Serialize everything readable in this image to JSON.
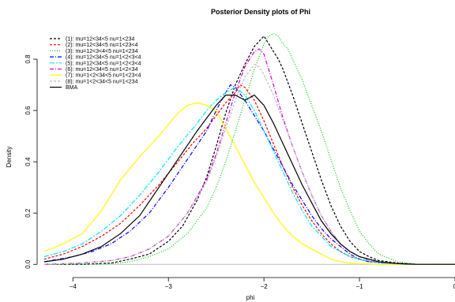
{
  "chart_data": {
    "type": "line",
    "title": "Posterior Density plots of Phi",
    "xlabel": "phi",
    "ylabel": "Density",
    "xlim": [
      -4.3,
      0.0
    ],
    "ylim": [
      -0.03,
      0.92
    ],
    "xticks": [
      -4,
      -3,
      -2,
      -1,
      0
    ],
    "xtick_labels": [
      "−4",
      "−3",
      "−2",
      "−1",
      "0"
    ],
    "yticks": [
      0.0,
      0.2,
      0.4,
      0.6,
      0.8
    ],
    "ytick_labels": [
      "0.0",
      "0.2",
      "0.4",
      "0.6",
      "0.8"
    ],
    "grid": false,
    "legend_position": "top-left",
    "baseline_color": "#bfbfbf",
    "series": [
      {
        "name": "(1): mu=12<34<5  nu=1<234",
        "color": "#000000",
        "dash": "3,2",
        "x": [
          -4.3,
          -3.9,
          -3.6,
          -3.4,
          -3.2,
          -3.0,
          -2.85,
          -2.7,
          -2.6,
          -2.5,
          -2.4,
          -2.3,
          -2.2,
          -2.1,
          -2.05,
          -2.0,
          -1.95,
          -1.9,
          -1.85,
          -1.8,
          -1.7,
          -1.6,
          -1.5,
          -1.4,
          -1.3,
          -1.2,
          -1.1,
          -1.0,
          -0.9,
          -0.8,
          -0.6,
          -0.4,
          0.0
        ],
        "y": [
          0.0,
          0.0,
          0.005,
          0.02,
          0.04,
          0.09,
          0.15,
          0.25,
          0.34,
          0.46,
          0.59,
          0.7,
          0.78,
          0.85,
          0.87,
          0.89,
          0.86,
          0.83,
          0.8,
          0.76,
          0.66,
          0.55,
          0.44,
          0.33,
          0.23,
          0.15,
          0.09,
          0.05,
          0.03,
          0.015,
          0.005,
          0.0,
          0.0
        ]
      },
      {
        "name": "(2): mu=12<34<5  nu=1<23<4",
        "color": "#ff0000",
        "dash": "3,2",
        "x": [
          -4.3,
          -4.1,
          -3.9,
          -3.7,
          -3.5,
          -3.3,
          -3.1,
          -2.9,
          -2.75,
          -2.6,
          -2.5,
          -2.4,
          -2.3,
          -2.25,
          -2.2,
          -2.1,
          -2.0,
          -1.9,
          -1.8,
          -1.7,
          -1.6,
          -1.5,
          -1.4,
          -1.3,
          -1.2,
          -1.1,
          -1.0,
          -0.9,
          -0.7,
          -0.5,
          -0.3,
          0.0
        ],
        "y": [
          0.02,
          0.04,
          0.07,
          0.11,
          0.16,
          0.23,
          0.31,
          0.4,
          0.47,
          0.53,
          0.58,
          0.63,
          0.67,
          0.7,
          0.69,
          0.64,
          0.56,
          0.47,
          0.38,
          0.3,
          0.23,
          0.17,
          0.12,
          0.08,
          0.05,
          0.03,
          0.02,
          0.01,
          0.005,
          0.0,
          0.0,
          0.0
        ]
      },
      {
        "name": "(3): mu=12<3<4<5  nu=1<234",
        "color": "#00cc00",
        "dash": "1,2",
        "x": [
          -4.3,
          -3.9,
          -3.6,
          -3.4,
          -3.2,
          -3.0,
          -2.8,
          -2.6,
          -2.5,
          -2.4,
          -2.3,
          -2.2,
          -2.1,
          -2.0,
          -1.95,
          -1.9,
          -1.85,
          -1.8,
          -1.75,
          -1.7,
          -1.6,
          -1.5,
          -1.4,
          -1.3,
          -1.2,
          -1.1,
          -1.0,
          -0.9,
          -0.8,
          -0.6,
          -0.4,
          0.0
        ],
        "y": [
          0.0,
          0.0,
          0.003,
          0.01,
          0.03,
          0.06,
          0.12,
          0.22,
          0.3,
          0.4,
          0.52,
          0.64,
          0.76,
          0.86,
          0.89,
          0.9,
          0.89,
          0.86,
          0.84,
          0.8,
          0.72,
          0.62,
          0.52,
          0.41,
          0.3,
          0.21,
          0.13,
          0.08,
          0.04,
          0.01,
          0.0,
          0.0
        ]
      },
      {
        "name": "(4): mu=12<34<5  nu=1<2<3<4",
        "color": "#0000ff",
        "dash": "5,2,1,2",
        "x": [
          -4.3,
          -4.0,
          -3.8,
          -3.6,
          -3.4,
          -3.2,
          -3.0,
          -2.8,
          -2.6,
          -2.5,
          -2.4,
          -2.35,
          -2.3,
          -2.2,
          -2.1,
          -2.0,
          -1.9,
          -1.8,
          -1.7,
          -1.6,
          -1.5,
          -1.4,
          -1.3,
          -1.2,
          -1.1,
          -1.0,
          -0.9,
          -0.7,
          -0.5,
          -0.3,
          0.0
        ],
        "y": [
          0.01,
          0.03,
          0.05,
          0.08,
          0.13,
          0.2,
          0.3,
          0.41,
          0.52,
          0.6,
          0.67,
          0.7,
          0.69,
          0.64,
          0.58,
          0.52,
          0.45,
          0.38,
          0.31,
          0.25,
          0.19,
          0.14,
          0.1,
          0.07,
          0.04,
          0.02,
          0.01,
          0.005,
          0.0,
          0.0,
          0.0
        ]
      },
      {
        "name": "(5): mu=12<34<5  nu=1<2<3<4",
        "color": "#00e5ff",
        "dash": "6,2,2,2",
        "x": [
          -4.3,
          -4.1,
          -3.9,
          -3.7,
          -3.5,
          -3.3,
          -3.1,
          -2.9,
          -2.7,
          -2.6,
          -2.5,
          -2.4,
          -2.3,
          -2.2,
          -2.1,
          -2.0,
          -1.9,
          -1.8,
          -1.7,
          -1.6,
          -1.5,
          -1.4,
          -1.3,
          -1.2,
          -1.1,
          -1.0,
          -0.8,
          -0.6,
          -0.4,
          0.0
        ],
        "y": [
          0.03,
          0.05,
          0.08,
          0.13,
          0.19,
          0.27,
          0.36,
          0.46,
          0.55,
          0.6,
          0.64,
          0.67,
          0.69,
          0.66,
          0.6,
          0.52,
          0.44,
          0.36,
          0.28,
          0.21,
          0.15,
          0.11,
          0.07,
          0.05,
          0.03,
          0.02,
          0.005,
          0.0,
          0.0,
          0.0
        ]
      },
      {
        "name": "(6): mu=12<34<5  nu=1<2<34",
        "color": "#dd00dd",
        "dash": "5,2,1,2",
        "x": [
          -4.3,
          -3.9,
          -3.6,
          -3.4,
          -3.2,
          -3.0,
          -2.8,
          -2.6,
          -2.5,
          -2.4,
          -2.3,
          -2.2,
          -2.1,
          -2.05,
          -2.0,
          -1.9,
          -1.8,
          -1.7,
          -1.6,
          -1.5,
          -1.4,
          -1.3,
          -1.2,
          -1.1,
          -1.0,
          -0.9,
          -0.7,
          -0.5,
          -0.3,
          0.0
        ],
        "y": [
          0.0,
          0.005,
          0.015,
          0.03,
          0.06,
          0.11,
          0.2,
          0.33,
          0.43,
          0.55,
          0.67,
          0.77,
          0.83,
          0.84,
          0.82,
          0.7,
          0.57,
          0.46,
          0.36,
          0.27,
          0.19,
          0.13,
          0.08,
          0.05,
          0.03,
          0.015,
          0.005,
          0.0,
          0.0,
          0.0
        ]
      },
      {
        "name": "(7): mu=1<2<34<5  nu=1<23<4",
        "color": "#ffff00",
        "dash": "",
        "x": [
          -4.3,
          -4.1,
          -3.9,
          -3.7,
          -3.5,
          -3.3,
          -3.1,
          -2.9,
          -2.8,
          -2.7,
          -2.6,
          -2.5,
          -2.4,
          -2.3,
          -2.2,
          -2.1,
          -2.0,
          -1.9,
          -1.8,
          -1.7,
          -1.6,
          -1.5,
          -1.4,
          -1.3,
          -1.2,
          -1.1,
          -1.0,
          -0.8,
          -0.6,
          -0.4,
          0.0
        ],
        "y": [
          0.05,
          0.08,
          0.12,
          0.21,
          0.33,
          0.42,
          0.5,
          0.59,
          0.62,
          0.63,
          0.62,
          0.6,
          0.53,
          0.46,
          0.39,
          0.32,
          0.26,
          0.2,
          0.15,
          0.11,
          0.08,
          0.06,
          0.04,
          0.02,
          0.01,
          0.005,
          0.003,
          0.0,
          0.0,
          0.0,
          0.0
        ]
      },
      {
        "name": "(8): mu=1<2<34<5  nu=1<234",
        "color": "#bbbbbb",
        "dash": "3,2",
        "x": [
          -4.3,
          -3.9,
          -3.6,
          -3.4,
          -3.2,
          -3.0,
          -2.8,
          -2.6,
          -2.5,
          -2.4,
          -2.3,
          -2.2,
          -2.1,
          -2.05,
          -2.0,
          -1.9,
          -1.8,
          -1.7,
          -1.6,
          -1.5,
          -1.4,
          -1.3,
          -1.2,
          -1.1,
          -1.0,
          -0.9,
          -0.7,
          -0.5,
          -0.3,
          0.0
        ],
        "y": [
          0.0,
          0.005,
          0.015,
          0.03,
          0.06,
          0.11,
          0.2,
          0.32,
          0.42,
          0.53,
          0.64,
          0.73,
          0.78,
          0.77,
          0.74,
          0.66,
          0.56,
          0.46,
          0.36,
          0.27,
          0.19,
          0.13,
          0.08,
          0.05,
          0.03,
          0.015,
          0.005,
          0.0,
          0.0,
          0.0
        ]
      },
      {
        "name": "BMA",
        "color": "#000000",
        "dash": "",
        "x": [
          -4.3,
          -4.1,
          -3.9,
          -3.7,
          -3.5,
          -3.3,
          -3.1,
          -2.9,
          -2.7,
          -2.5,
          -2.4,
          -2.3,
          -2.2,
          -2.1,
          -2.0,
          -1.9,
          -1.8,
          -1.7,
          -1.6,
          -1.5,
          -1.4,
          -1.3,
          -1.2,
          -1.1,
          -1.0,
          -0.9,
          -0.8,
          -0.6,
          -0.4,
          -0.2,
          0.0
        ],
        "y": [
          0.01,
          0.02,
          0.04,
          0.07,
          0.12,
          0.19,
          0.3,
          0.41,
          0.52,
          0.62,
          0.66,
          0.66,
          0.64,
          0.66,
          0.62,
          0.55,
          0.47,
          0.39,
          0.31,
          0.24,
          0.17,
          0.12,
          0.08,
          0.05,
          0.03,
          0.02,
          0.01,
          0.003,
          0.0,
          0.0,
          0.0
        ]
      }
    ]
  }
}
